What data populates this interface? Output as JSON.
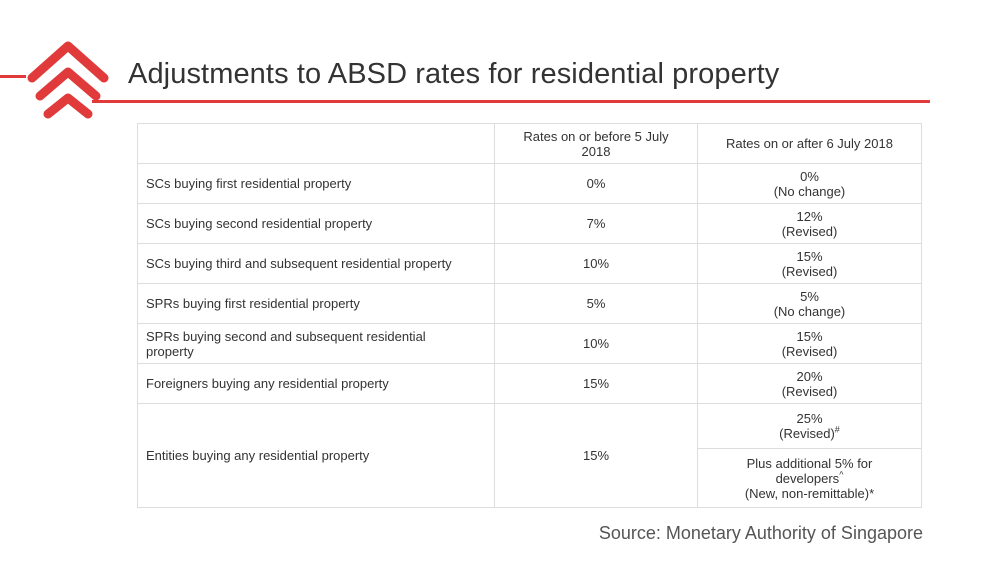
{
  "title": "Adjustments to ABSD rates for residential property",
  "colors": {
    "accent": "#e03a3a",
    "text": "#333333",
    "border": "#dddddd"
  },
  "logo_icon": "red-stacked-chevron-logo",
  "table": {
    "headers": [
      "",
      "Rates on or before 5 July 2018",
      "Rates on or after 6 July 2018"
    ],
    "rows": [
      {
        "category": "SCs buying first residential property",
        "before": "0%",
        "after": "0%",
        "after_note": "(No change)"
      },
      {
        "category": "SCs buying second residential property",
        "before": "7%",
        "after": "12%",
        "after_note": "(Revised)"
      },
      {
        "category": "SCs buying third and subsequent residential property",
        "before": "10%",
        "after": "15%",
        "after_note": "(Revised)"
      },
      {
        "category": "SPRs buying first residential property",
        "before": "5%",
        "after": "5%",
        "after_note": "(No change)"
      },
      {
        "category": "SPRs buying second and subsequent residential property",
        "before": "10%",
        "after": "15%",
        "after_note": "(Revised)"
      },
      {
        "category": "Foreigners buying any residential property",
        "before": "15%",
        "after": "20%",
        "after_note": "(Revised)"
      }
    ],
    "entities": {
      "category": "Entities buying any residential property",
      "before": "15%",
      "after_rate": "25%",
      "after_note": "(Revised)",
      "after_note_mark": "#",
      "extra_line1": "Plus additional 5% for",
      "extra_line2": "developers",
      "extra_line2_mark": "^",
      "extra_line3": "(New, non-remittable)*"
    }
  },
  "source": "Source: Monetary Authority of Singapore"
}
